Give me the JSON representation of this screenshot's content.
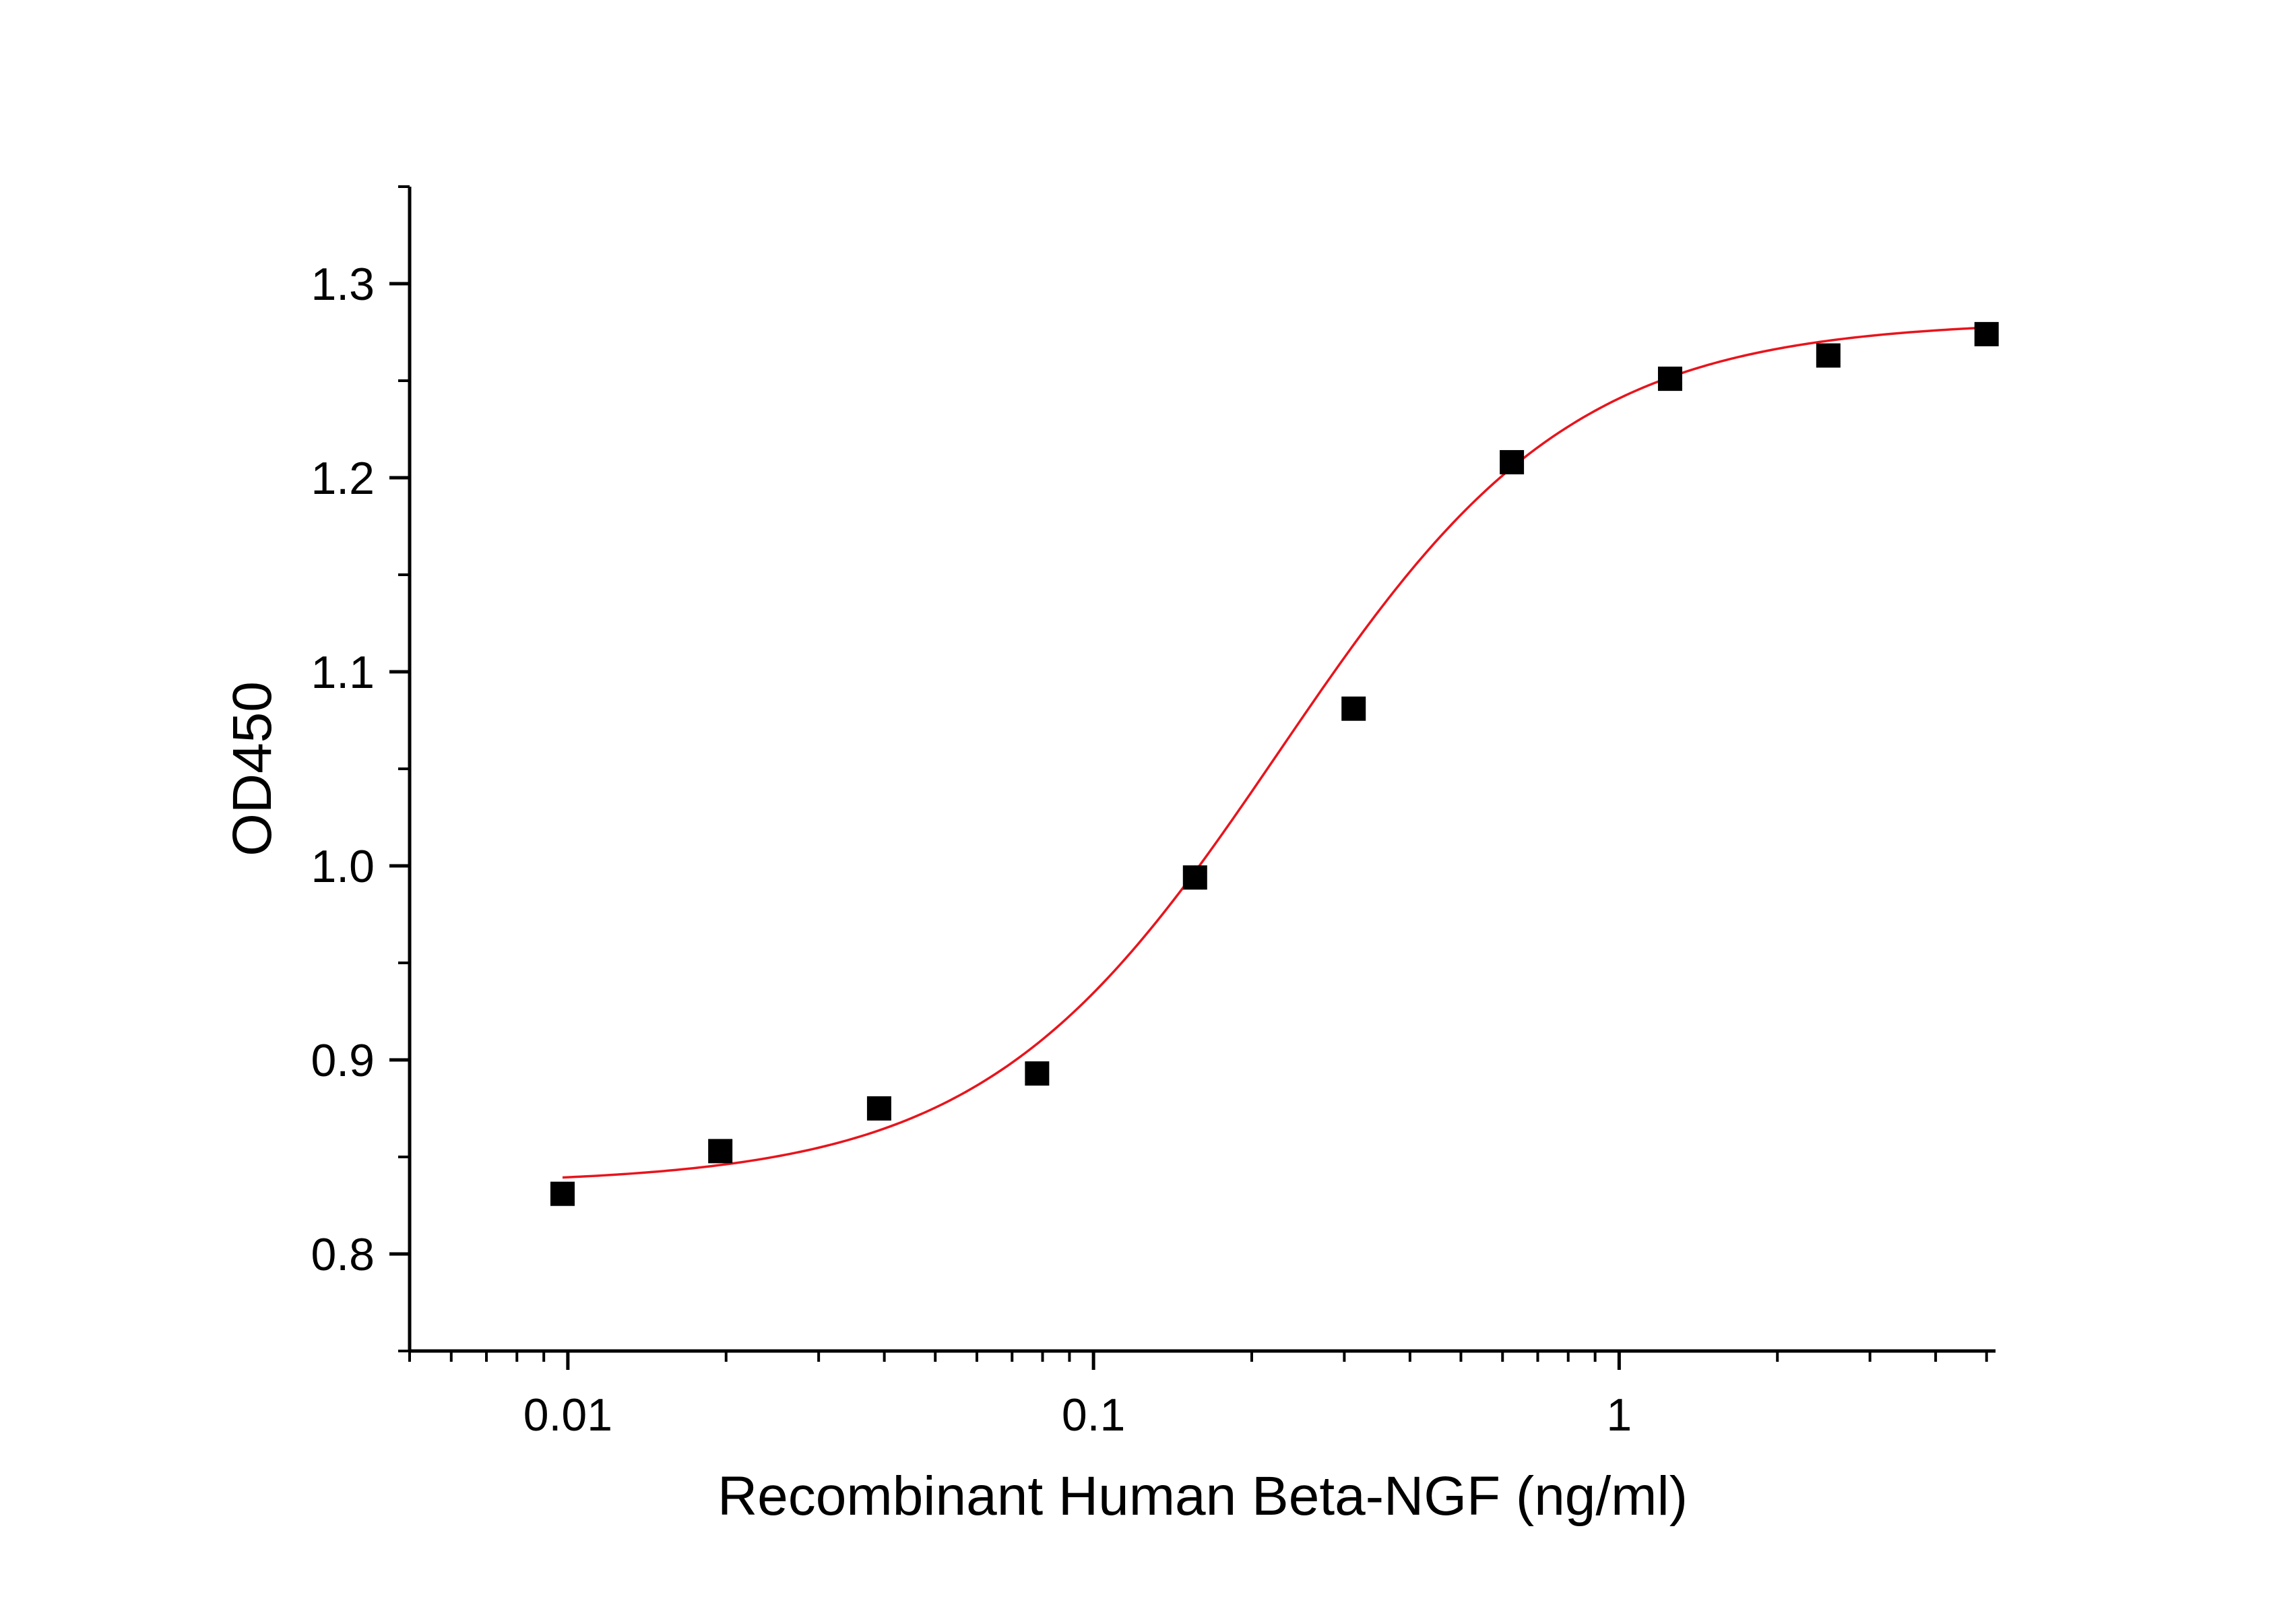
{
  "chart_data": {
    "type": "scatter",
    "title": "",
    "xlabel": "Recombinant Human Beta-NGF (ng/ml)",
    "ylabel": "OD450",
    "x_scale": "log",
    "xlim": [
      0.005,
      5.2
    ],
    "ylim": [
      0.75,
      1.35
    ],
    "x_ticks": [
      0.01,
      0.1,
      1
    ],
    "x_tick_labels": [
      "0.01",
      "0.1",
      "1"
    ],
    "y_ticks": [
      0.8,
      0.9,
      1.0,
      1.1,
      1.2,
      1.3
    ],
    "y_tick_labels": [
      "0.8",
      "0.9",
      "1.0",
      "1.1",
      "1.2",
      "1.3"
    ],
    "grid": false,
    "legend": "none",
    "series": [
      {
        "marker": "square",
        "color": "#000000",
        "x": [
          0.00977,
          0.0195,
          0.0391,
          0.0781,
          0.156,
          0.3125,
          0.625,
          1.25,
          2.5,
          5.0
        ],
        "y": [
          0.831,
          0.853,
          0.875,
          0.893,
          0.994,
          1.081,
          1.208,
          1.251,
          1.263,
          1.274
        ]
      }
    ],
    "fit": {
      "model": "four-parameter logistic",
      "color": "#e8141c",
      "bottom": 0.836,
      "top": 1.281,
      "ec50": 0.225,
      "hill": 1.55
    }
  }
}
